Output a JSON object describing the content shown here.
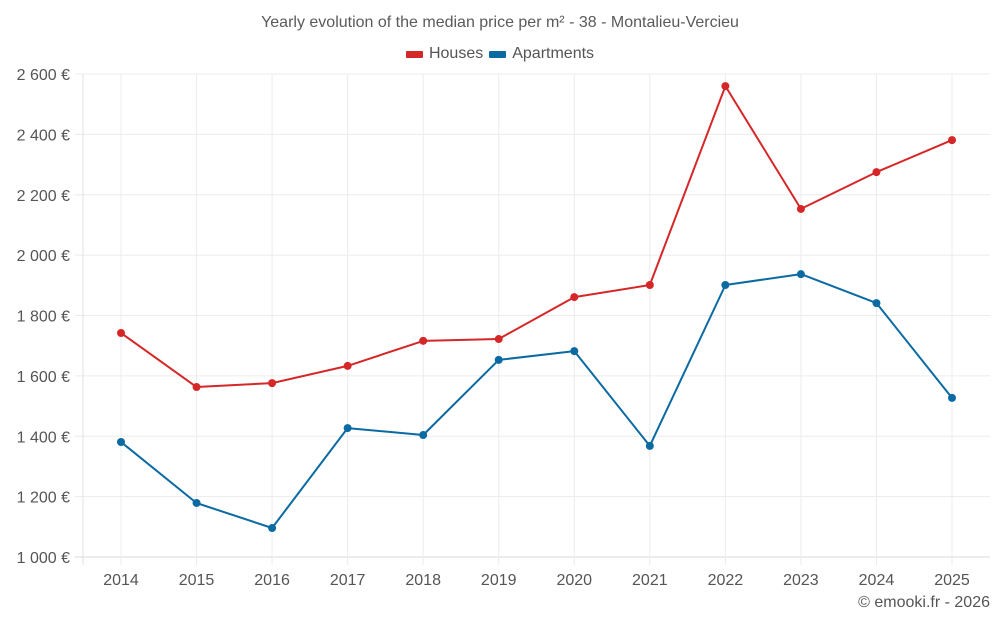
{
  "chart_data": {
    "type": "line",
    "title": "Yearly evolution of the median price per m² - 38 - Montalieu-Vercieu",
    "xlabel": "",
    "ylabel": "",
    "categories": [
      "2014",
      "2015",
      "2016",
      "2017",
      "2018",
      "2019",
      "2020",
      "2021",
      "2022",
      "2023",
      "2024",
      "2025"
    ],
    "series": [
      {
        "name": "Houses",
        "color": "#d62728",
        "values": [
          1742,
          1563,
          1576,
          1633,
          1716,
          1722,
          1861,
          1901,
          2560,
          2153,
          2275,
          2381
        ]
      },
      {
        "name": "Apartments",
        "color": "#0a6aa1",
        "values": [
          1381,
          1179,
          1096,
          1427,
          1404,
          1653,
          1682,
          1368,
          1901,
          1937,
          1841,
          1527
        ]
      }
    ],
    "ylim": [
      1000,
      2600
    ],
    "yticks": [
      1000,
      1200,
      1400,
      1600,
      1800,
      2000,
      2200,
      2400,
      2600
    ],
    "ytick_labels": [
      "1 000 €",
      "1 200 €",
      "1 400 €",
      "1 600 €",
      "1 800 €",
      "2 000 €",
      "2 200 €",
      "2 400 €",
      "2 600 €"
    ],
    "grid": true,
    "legend_position": "top-center"
  },
  "credit": "© emooki.fr - 2026"
}
